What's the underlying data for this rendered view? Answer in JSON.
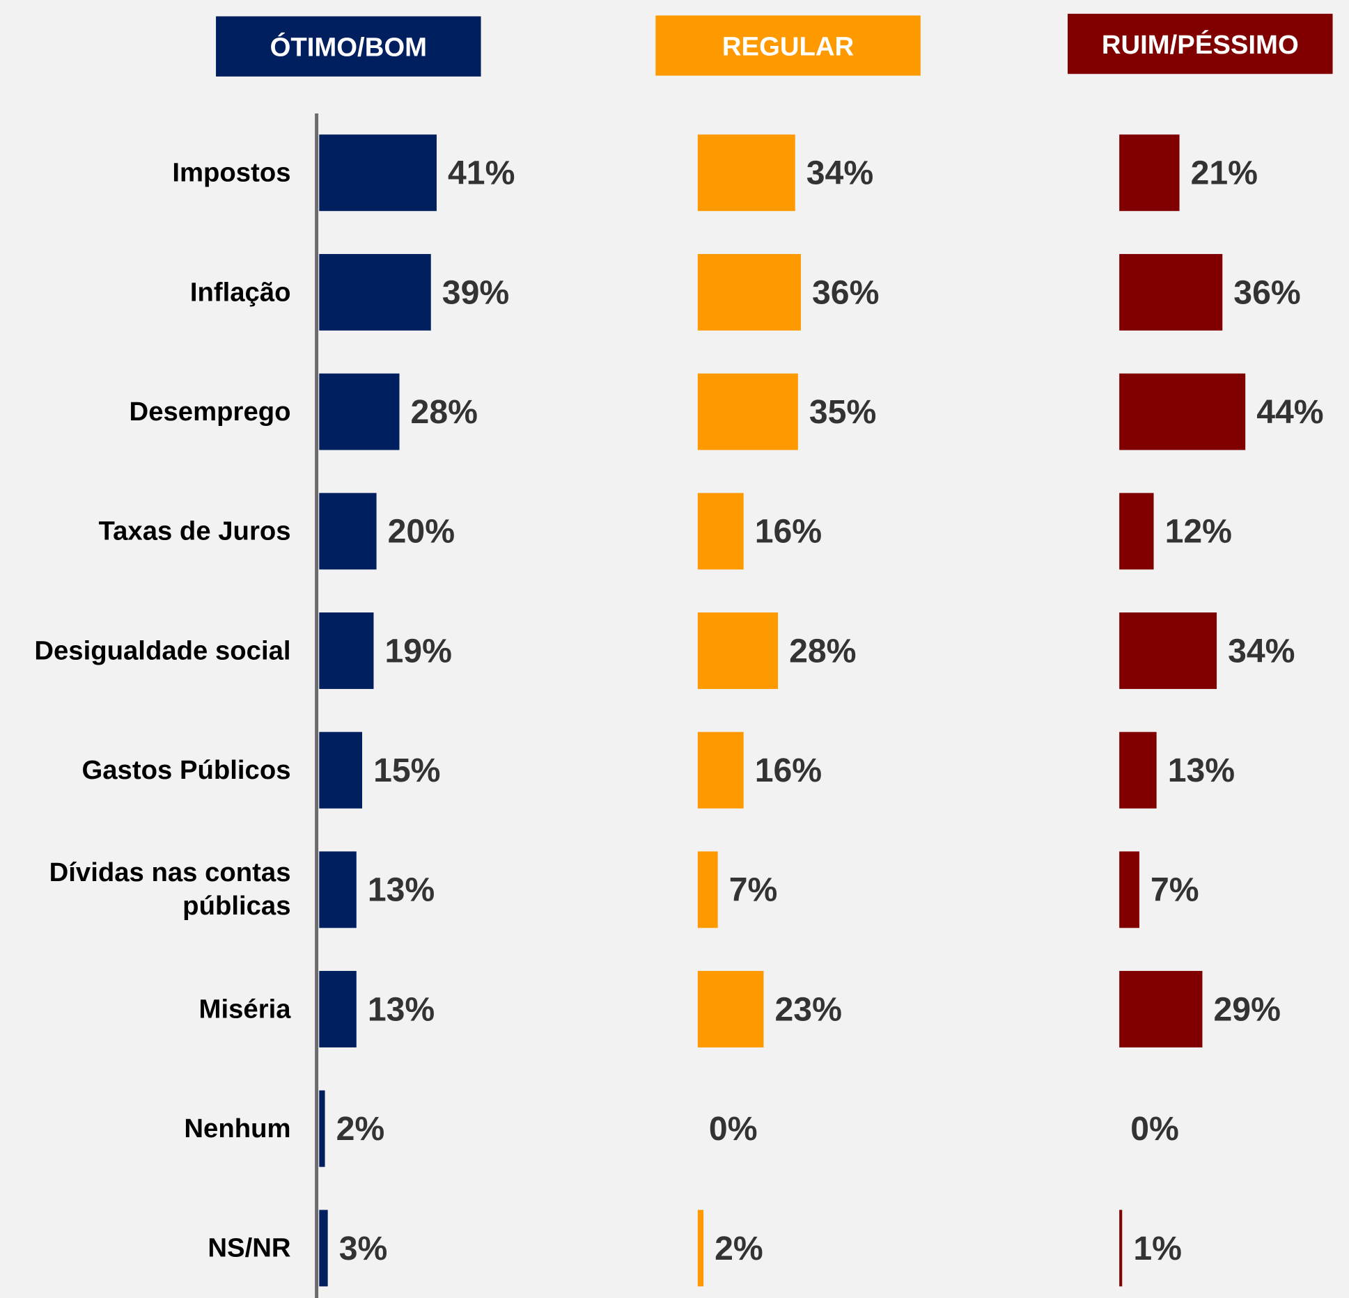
{
  "chart_data": {
    "type": "bar",
    "categories": [
      "Impostos",
      "Inflação",
      "Desemprego",
      "Taxas de Juros",
      "Desigualdade social",
      "Gastos Públicos",
      "Dívidas nas contas públicas",
      "Miséria",
      "Nenhum",
      "NS/NR"
    ],
    "series": [
      {
        "name": "ÓTIMO/BOM",
        "color": "#001f5f",
        "values": [
          41,
          39,
          28,
          20,
          19,
          15,
          13,
          13,
          2,
          3
        ],
        "value_labels": [
          "41%",
          "39%",
          "28%",
          "20%",
          "19%",
          "15%",
          "13%",
          "13%",
          "2%",
          "3%"
        ]
      },
      {
        "name": "REGULAR",
        "color": "#ff9900",
        "values": [
          34,
          36,
          35,
          16,
          28,
          16,
          7,
          23,
          0,
          2
        ],
        "value_labels": [
          "34%",
          "36%",
          "35%",
          "16%",
          "28%",
          "16%",
          "7%",
          "23%",
          "0%",
          "2%"
        ]
      },
      {
        "name": "RUIM/PÉSSIMO",
        "color": "#800000",
        "values": [
          21,
          36,
          44,
          12,
          34,
          13,
          7,
          29,
          0,
          1
        ],
        "value_labels": [
          "21%",
          "36%",
          "44%",
          "12%",
          "34%",
          "13%",
          "7%",
          "29%",
          "0%",
          "1%"
        ]
      }
    ]
  }
}
